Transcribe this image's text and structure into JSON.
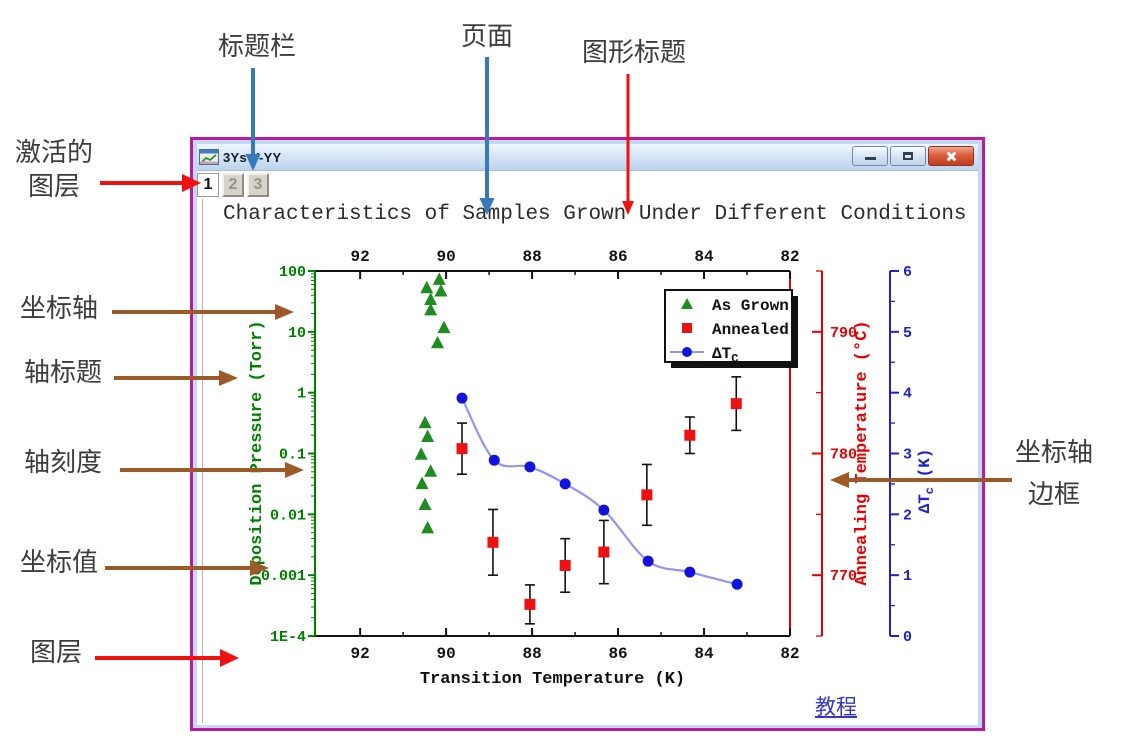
{
  "window": {
    "title": "3Ys Y-YY",
    "layer_buttons": [
      "1",
      "2",
      "3"
    ],
    "active_layer": "1",
    "tutorial_link": "教程",
    "controls": {
      "minimize": "minimize",
      "maximize": "maximize",
      "close": "close"
    }
  },
  "annotations": {
    "titlebar": "标题栏",
    "page": "页面",
    "graph_title": "图形标题",
    "active_layer_line1": "激活的",
    "active_layer_line2": "图层",
    "axis": "坐标轴",
    "axis_title": "轴标题",
    "axis_tick": "轴刻度",
    "coordinate_value": "坐标值",
    "layer": "图层",
    "axis_frame_line1": "坐标轴",
    "axis_frame_line2": "边框"
  },
  "colors": {
    "window_border": "#B91A9E",
    "arrow_blue": "#3778BE",
    "arrow_red": "#F01010",
    "arrow_brown": "#9C5A28",
    "axis_green": "#008000",
    "axis_red": "#E60000",
    "axis_blue": "#2020CC",
    "curve_blue": "#9393F2"
  },
  "chart_data": {
    "type": "scatter",
    "title": "Characteristics of Samples Grown Under Different Conditions",
    "x_axis": {
      "label": "Transition Temperature (K)",
      "range": [
        93.05,
        82
      ],
      "tick_values": [
        92,
        90,
        88,
        86,
        84,
        82
      ],
      "tick_labels": [
        "92",
        "90",
        "88",
        "86",
        "84",
        "82"
      ],
      "minor_ticks": [
        91,
        89,
        87,
        85,
        83
      ],
      "mirrored_top_axis": true
    },
    "y_left": {
      "label": "Deposition Pressure (Torr)",
      "scale": "log",
      "range": [
        0.0001,
        100
      ],
      "tick_values": [
        100,
        10,
        1,
        0.1,
        0.01,
        0.001,
        0.0001
      ],
      "tick_labels": [
        "100",
        "10",
        "1",
        "0.1",
        "0.01",
        "0.001",
        "1E-4"
      ],
      "color": "#008000"
    },
    "y_right": {
      "label": "Annealing Temperature (°C)",
      "range": [
        765,
        795
      ],
      "tick_values": [
        790,
        780,
        770
      ],
      "tick_labels": [
        "790",
        "780",
        "770"
      ],
      "minor_step": 5,
      "color": "#E60000"
    },
    "y_right2": {
      "label_main": "ΔT",
      "label_sub": "c",
      "label_rest": " (K)",
      "range": [
        0,
        6
      ],
      "tick_values": [
        6,
        5,
        4,
        3,
        2,
        1,
        0
      ],
      "tick_labels": [
        "6",
        "5",
        "4",
        "3",
        "2",
        "1",
        "0"
      ],
      "minor_step": 0.5,
      "color": "#2020CC"
    },
    "series": [
      {
        "name": "As Grown",
        "axis": "left",
        "marker": "triangle",
        "color": "#1E8C1E",
        "points": [
          [
            90.16,
            73
          ],
          [
            90.45,
            53
          ],
          [
            90.12,
            47
          ],
          [
            90.36,
            34
          ],
          [
            90.36,
            23
          ],
          [
            90.05,
            11.7
          ],
          [
            90.2,
            6.6
          ],
          [
            90.49,
            0.32
          ],
          [
            90.43,
            0.19
          ],
          [
            90.58,
            0.097
          ],
          [
            90.36,
            0.051
          ],
          [
            90.56,
            0.032
          ],
          [
            90.49,
            0.0145
          ],
          [
            90.43,
            0.006
          ]
        ]
      },
      {
        "name": "Annealed",
        "axis": "right",
        "marker": "square",
        "color": "#EE1111",
        "error_bars": true,
        "points": [
          [
            89.63,
            780.4,
            2.1
          ],
          [
            88.91,
            772.7,
            2.7
          ],
          [
            88.05,
            767.6,
            1.6
          ],
          [
            87.23,
            770.8,
            2.2
          ],
          [
            86.33,
            771.9,
            2.6
          ],
          [
            85.33,
            776.6,
            2.5
          ],
          [
            84.33,
            781.5,
            1.5
          ],
          [
            83.25,
            784.1,
            2.2
          ]
        ]
      },
      {
        "name": "ΔTc",
        "axis": "right2",
        "marker": "circle",
        "color": "#1313DD",
        "line": true,
        "line_color": "#9393F2",
        "points": [
          [
            89.63,
            3.91
          ],
          [
            88.88,
            2.89
          ],
          [
            88.05,
            2.78
          ],
          [
            87.23,
            2.5
          ],
          [
            86.33,
            2.07
          ],
          [
            85.3,
            1.23
          ],
          [
            84.33,
            1.05
          ],
          [
            83.23,
            0.85
          ]
        ]
      }
    ],
    "legend": {
      "position": "top-right",
      "entries": [
        {
          "label": "As Grown",
          "sub": ""
        },
        {
          "label": "Annealed",
          "sub": ""
        },
        {
          "label": "ΔT",
          "sub": "C"
        }
      ]
    },
    "grid": false
  }
}
